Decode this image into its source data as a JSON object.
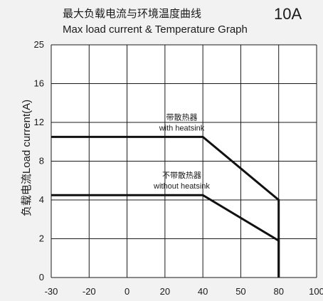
{
  "chart_data": {
    "type": "line",
    "title_cn": "最大负载电流与环境温度曲线",
    "title_en": "Max load current & Temperature Graph",
    "model": "10A",
    "ylabel": "负载电流Load current(A)",
    "xlabel": "",
    "x_ticks": [
      "-30",
      "-20",
      "0",
      "20",
      "40",
      "50",
      "80",
      "100"
    ],
    "y_ticks": [
      "0",
      "2",
      "4",
      "8",
      "12",
      "16",
      "25"
    ],
    "grid": true,
    "series": [
      {
        "name": "带散热器 with heatsink",
        "points": [
          {
            "x": "-30",
            "y": "10.5"
          },
          {
            "x": "40",
            "y": "10.5"
          },
          {
            "x": "80",
            "y": "4"
          },
          {
            "x": "80",
            "y": "0"
          }
        ]
      },
      {
        "name": "不带散热器 without heatsink",
        "points": [
          {
            "x": "-30",
            "y": "4.5"
          },
          {
            "x": "40",
            "y": "4.5"
          },
          {
            "x": "80",
            "y": "1.9"
          },
          {
            "x": "80",
            "y": "0"
          }
        ]
      }
    ],
    "annotations": [
      {
        "cn": "带散热器",
        "en": "with heatsink"
      },
      {
        "cn": "不带散热器",
        "en": "without heatsink"
      }
    ]
  }
}
